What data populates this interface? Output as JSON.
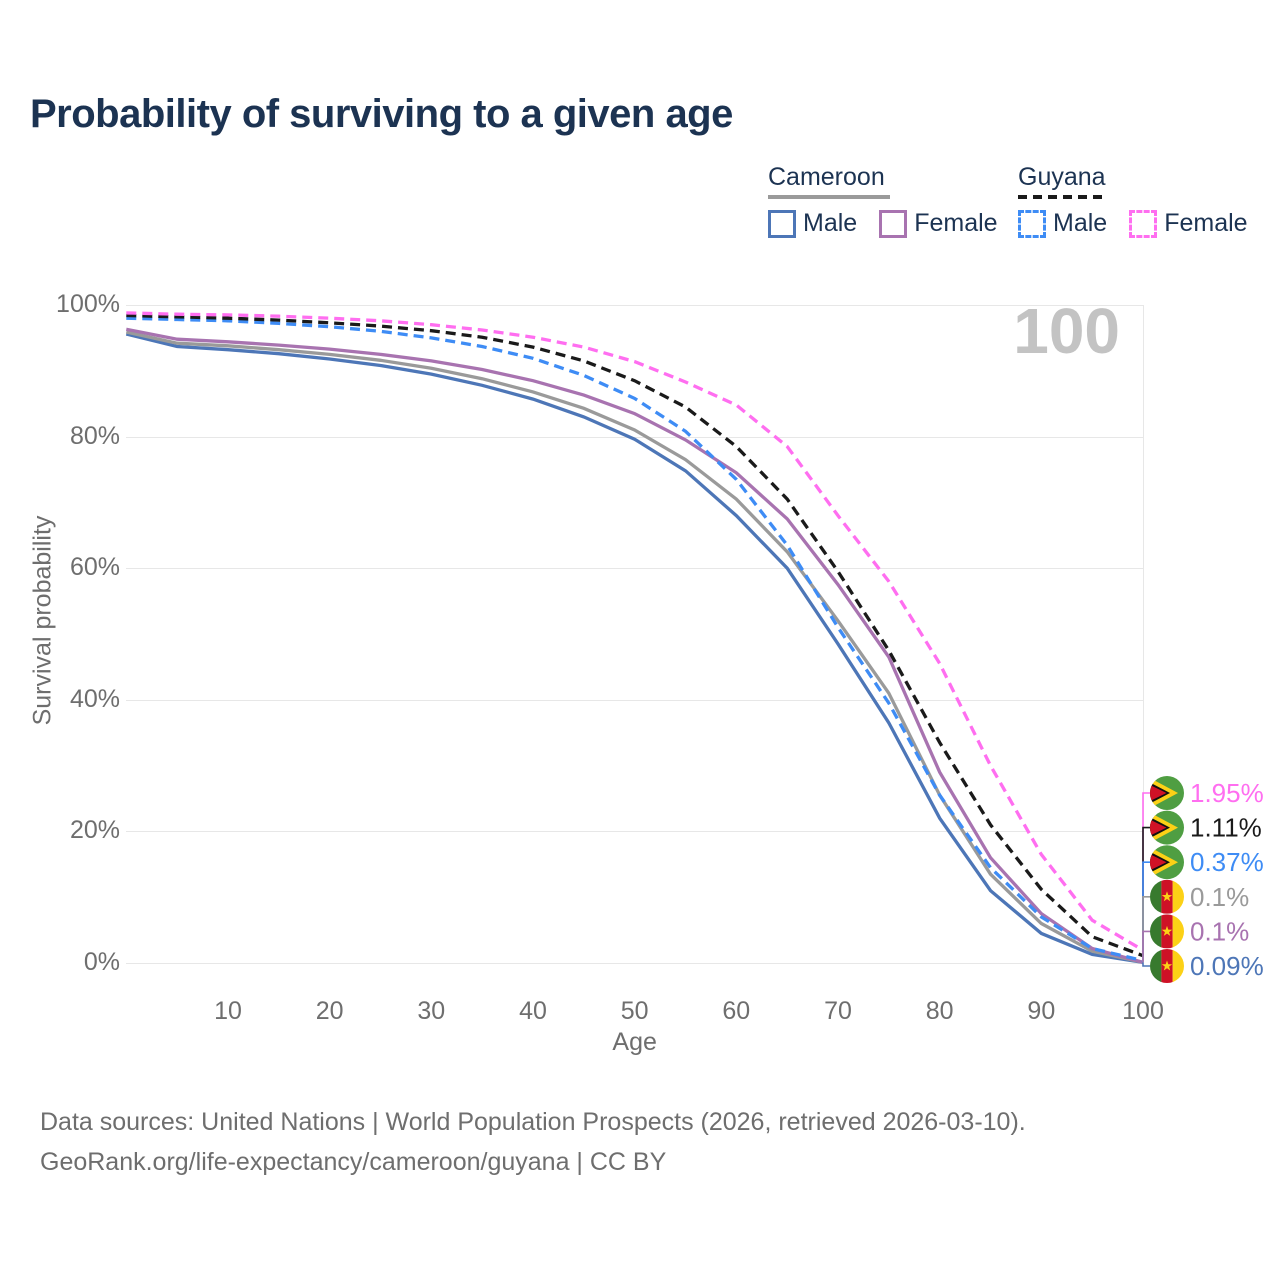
{
  "header": {
    "title": "Probability of surviving to a given age"
  },
  "legend": {
    "groups": [
      {
        "name": "Cameroon",
        "line_color": "#9a9a9a",
        "line_style": "solid",
        "items": [
          {
            "label": "Male",
            "color": "#4d76b7",
            "dash": false
          },
          {
            "label": "Female",
            "color": "#a873b0",
            "dash": false
          }
        ]
      },
      {
        "name": "Guyana",
        "line_color": "#1a1a1a",
        "line_style": "dashed",
        "items": [
          {
            "label": "Male",
            "color": "#3e8cf5",
            "dash": true
          },
          {
            "label": "Female",
            "color": "#ff6ef0",
            "dash": true
          }
        ]
      }
    ]
  },
  "chart_data": {
    "type": "line",
    "title": "Probability of surviving to a given age",
    "xlabel": "Age",
    "ylabel": "Survival probability",
    "watermark": "100",
    "xlim": [
      0,
      100
    ],
    "ylim": [
      0,
      100
    ],
    "grid": "horizontal",
    "x_ticks": [
      10,
      20,
      30,
      40,
      50,
      60,
      70,
      80,
      90,
      100
    ],
    "y_ticks": [
      {
        "value": 0,
        "label": "0%"
      },
      {
        "value": 20,
        "label": "20%"
      },
      {
        "value": 40,
        "label": "40%"
      },
      {
        "value": 60,
        "label": "60%"
      },
      {
        "value": 80,
        "label": "80%"
      },
      {
        "value": 100,
        "label": "100%"
      }
    ],
    "x": [
      0,
      5,
      10,
      15,
      20,
      25,
      30,
      35,
      40,
      45,
      50,
      55,
      60,
      65,
      70,
      75,
      80,
      85,
      90,
      95,
      100
    ],
    "series": [
      {
        "name": "Cameroon Male",
        "country": "Cameroon",
        "sex": "Male",
        "color": "#4d76b7",
        "dash": false,
        "flag": "cameroon",
        "end_label": "0.09%",
        "values": [
          95.6,
          93.7,
          93.2,
          92.6,
          91.8,
          90.8,
          89.5,
          87.8,
          85.7,
          83.0,
          79.6,
          74.8,
          68.0,
          60.0,
          48.5,
          36.5,
          22.0,
          11.0,
          4.5,
          1.3,
          0.09
        ]
      },
      {
        "name": "Cameroon",
        "country": "Cameroon",
        "sex": "Both",
        "color": "#9a9a9a",
        "dash": false,
        "flag": "cameroon",
        "end_label": "0.1%",
        "values": [
          95.9,
          94.2,
          93.8,
          93.2,
          92.5,
          91.6,
          90.4,
          88.8,
          86.8,
          84.3,
          81.0,
          76.5,
          70.5,
          62.5,
          52.0,
          41.0,
          25.5,
          13.5,
          6.0,
          1.8,
          0.1
        ]
      },
      {
        "name": "Cameroon Female",
        "country": "Cameroon",
        "sex": "Female",
        "color": "#a873b0",
        "dash": false,
        "flag": "cameroon",
        "end_label": "0.1%",
        "values": [
          96.3,
          94.8,
          94.4,
          93.9,
          93.3,
          92.5,
          91.5,
          90.2,
          88.5,
          86.3,
          83.5,
          79.5,
          74.5,
          67.5,
          57.5,
          46.5,
          29.0,
          16.0,
          7.5,
          2.2,
          0.1
        ]
      },
      {
        "name": "Guyana Male",
        "country": "Guyana",
        "sex": "Male",
        "color": "#3e8cf5",
        "dash": true,
        "flag": "guyana",
        "end_label": "0.37%",
        "values": [
          98.0,
          97.8,
          97.6,
          97.2,
          96.7,
          96.0,
          95.0,
          93.7,
          91.9,
          89.3,
          85.8,
          80.8,
          73.5,
          63.5,
          51.0,
          39.5,
          25.5,
          14.5,
          7.0,
          2.2,
          0.37
        ]
      },
      {
        "name": "Guyana",
        "country": "Guyana",
        "sex": "Both",
        "color": "#1a1a1a",
        "dash": true,
        "flag": "guyana",
        "end_label": "1.11%",
        "values": [
          98.4,
          98.2,
          98.0,
          97.7,
          97.3,
          96.8,
          96.1,
          95.1,
          93.6,
          91.5,
          88.5,
          84.5,
          78.5,
          70.5,
          59.5,
          47.5,
          33.5,
          21.0,
          11.2,
          4.0,
          1.11
        ]
      },
      {
        "name": "Guyana Female",
        "country": "Guyana",
        "sex": "Female",
        "color": "#ff6ef0",
        "dash": true,
        "flag": "guyana",
        "end_label": "1.95%",
        "values": [
          98.8,
          98.6,
          98.5,
          98.3,
          98.0,
          97.6,
          97.0,
          96.2,
          95.1,
          93.6,
          91.4,
          88.3,
          84.8,
          78.5,
          68.0,
          58.0,
          45.5,
          30.0,
          16.5,
          6.5,
          1.95
        ]
      }
    ],
    "flag_colors": {
      "guyana": {
        "green": "#4f9e42",
        "yellow": "#fcd116",
        "red": "#d01226",
        "black": "#111111"
      },
      "cameroon": {
        "green": "#387a2e",
        "red": "#ce1126",
        "yellow": "#fcd116",
        "star": "#fcd116"
      }
    }
  },
  "footer": {
    "line1": "Data sources: United Nations | World Population Prospects (2026, retrieved 2026-03-10).",
    "line2": "GeoRank.org/life-expectancy/cameroon/guyana | CC BY"
  }
}
